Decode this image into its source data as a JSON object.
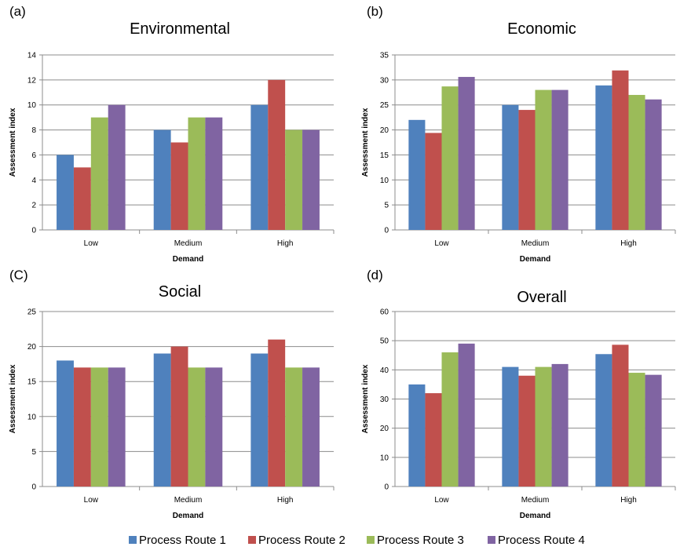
{
  "colors": {
    "Process Route 1": "#4f81bd",
    "Process Route 2": "#c0504d",
    "Process Route 3": "#9bbb59",
    "Process Route 4": "#8064a2",
    "gridline": "#8c8c8c",
    "axis": "#8c8c8c"
  },
  "legend": {
    "position": "bottom",
    "items": [
      "Process Route 1",
      "Process Route 2",
      "Process Route 3",
      "Process Route 4"
    ]
  },
  "chart_data": [
    {
      "panel": "(a)",
      "type": "bar",
      "title": "Environmental",
      "xlabel": "Demand",
      "ylabel": "Assessment index",
      "categories": [
        "Low",
        "Medium",
        "High"
      ],
      "ylim": [
        0,
        14
      ],
      "yticks": [
        0,
        2,
        4,
        6,
        8,
        10,
        12,
        14
      ],
      "grid": true,
      "series": [
        {
          "name": "Process Route 1",
          "values": [
            6,
            8,
            10
          ]
        },
        {
          "name": "Process Route 2",
          "values": [
            5,
            7,
            12
          ]
        },
        {
          "name": "Process Route 3",
          "values": [
            9,
            9,
            8
          ]
        },
        {
          "name": "Process Route 4",
          "values": [
            10,
            9,
            8
          ]
        }
      ]
    },
    {
      "panel": "(b)",
      "type": "bar",
      "title": "Economic",
      "xlabel": "Demand",
      "ylabel": "Assessment index",
      "categories": [
        "Low",
        "Medium",
        "High"
      ],
      "ylim": [
        0,
        35
      ],
      "yticks": [
        0,
        5,
        10,
        15,
        20,
        25,
        30,
        35
      ],
      "grid": true,
      "series": [
        {
          "name": "Process Route 1",
          "values": [
            22,
            25,
            28.9
          ]
        },
        {
          "name": "Process Route 2",
          "values": [
            19.4,
            24,
            31.9
          ]
        },
        {
          "name": "Process Route 3",
          "values": [
            28.7,
            28,
            27
          ]
        },
        {
          "name": "Process Route 4",
          "values": [
            30.6,
            28,
            26.1
          ]
        }
      ]
    },
    {
      "panel": "(C)",
      "type": "bar",
      "title": "Social",
      "xlabel": "Demand",
      "ylabel": "Assessment index",
      "categories": [
        "Low",
        "Medium",
        "High"
      ],
      "ylim": [
        0,
        25
      ],
      "yticks": [
        0,
        5,
        10,
        15,
        20,
        25
      ],
      "grid": true,
      "series": [
        {
          "name": "Process Route 1",
          "values": [
            18,
            19,
            19
          ]
        },
        {
          "name": "Process Route 2",
          "values": [
            17,
            20,
            21
          ]
        },
        {
          "name": "Process Route 3",
          "values": [
            17,
            17,
            17
          ]
        },
        {
          "name": "Process Route 4",
          "values": [
            17,
            17,
            17
          ]
        }
      ]
    },
    {
      "panel": "(d)",
      "type": "bar",
      "title": "Overall",
      "xlabel": "Demand",
      "ylabel": "Assessment index",
      "categories": [
        "Low",
        "Medium",
        "High"
      ],
      "ylim": [
        0,
        60
      ],
      "yticks": [
        0,
        10,
        20,
        30,
        40,
        50,
        60
      ],
      "grid": true,
      "series": [
        {
          "name": "Process Route 1",
          "values": [
            35,
            41,
            45.4
          ]
        },
        {
          "name": "Process Route 2",
          "values": [
            32,
            38,
            48.6
          ]
        },
        {
          "name": "Process Route 3",
          "values": [
            46,
            41,
            39
          ]
        },
        {
          "name": "Process Route 4",
          "values": [
            49,
            42,
            38.3
          ]
        }
      ]
    }
  ]
}
